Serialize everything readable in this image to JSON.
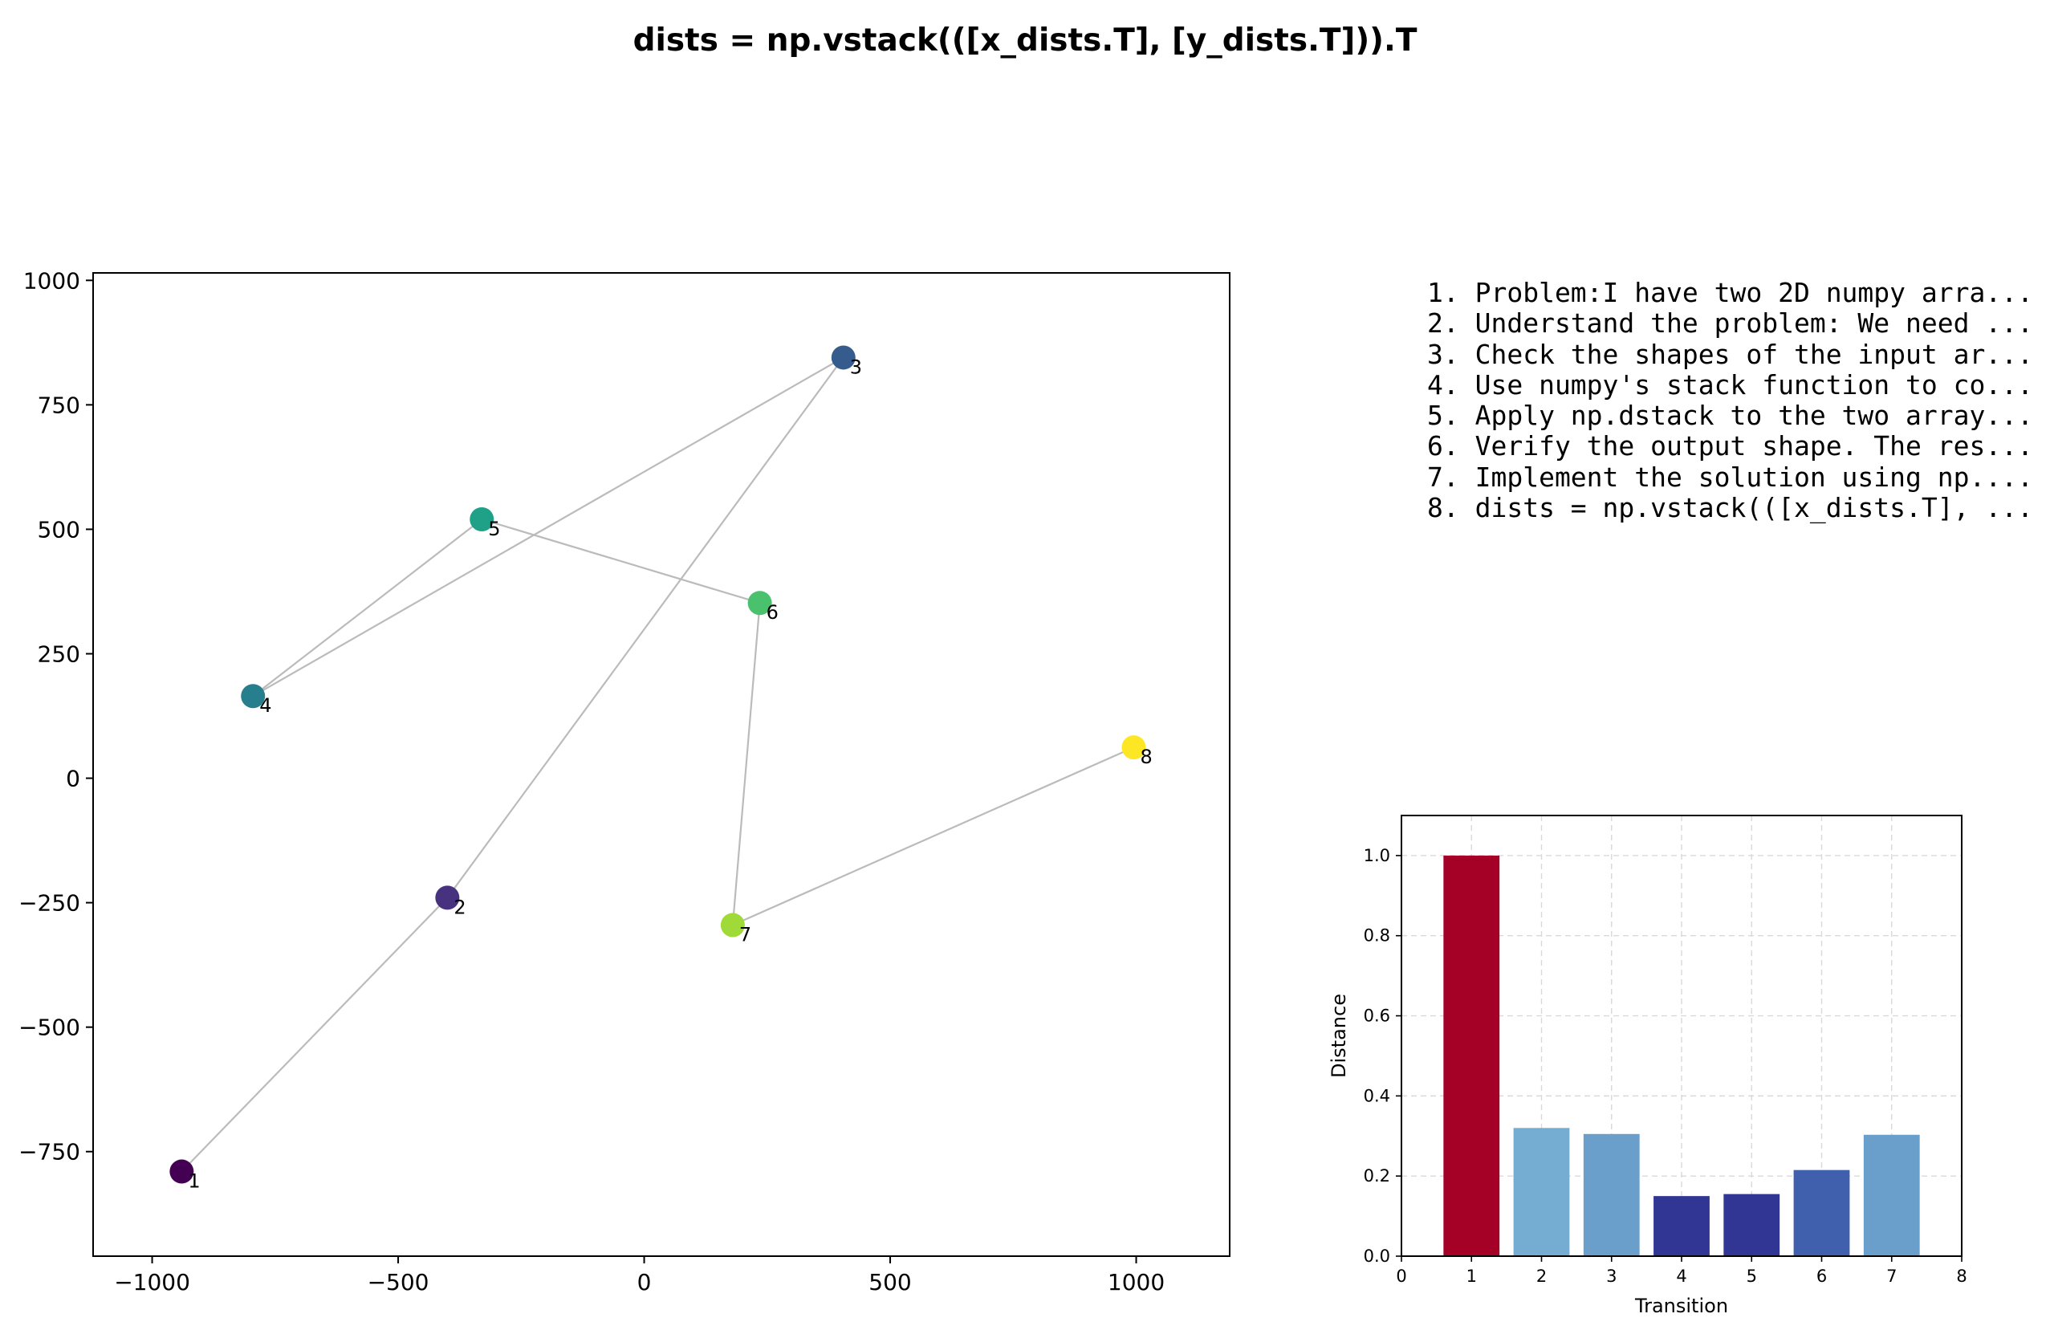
{
  "title": "dists = np.vstack(([x_dists.T], [y_dists.T])).T",
  "steps": [
    "1. Problem:I have two 2D numpy arra...",
    "2. Understand the problem: We need ...",
    "3. Check the shapes of the input ar...",
    "4. Use numpy's stack function to co...",
    "5. Apply np.dstack to the two array...",
    "6. Verify the output shape. The res...",
    "7. Implement the solution using np....",
    "8. dists = np.vstack(([x_dists.T], ..."
  ],
  "chart_data": [
    {
      "type": "scatter",
      "title": "",
      "xlabel": "",
      "ylabel": "",
      "xlim": [
        -1120,
        1190
      ],
      "ylim": [
        -960,
        1015
      ],
      "xticks": [
        -1000,
        -500,
        0,
        500,
        1000
      ],
      "yticks": [
        -750,
        -500,
        -250,
        0,
        250,
        500,
        750,
        1000
      ],
      "xtick_labels": [
        "−1000",
        "−500",
        "0",
        "500",
        "1000"
      ],
      "ytick_labels": [
        "−750",
        "−500",
        "−250",
        "0",
        "250",
        "500",
        "750",
        "1000"
      ],
      "connect_points": true,
      "line_color": "#bbbbbb",
      "grid": false,
      "points": [
        {
          "label": "1",
          "x": -940,
          "y": -790,
          "color": "#440154"
        },
        {
          "label": "2",
          "x": -400,
          "y": -240,
          "color": "#46327e"
        },
        {
          "label": "3",
          "x": 405,
          "y": 845,
          "color": "#365c8d"
        },
        {
          "label": "4",
          "x": -795,
          "y": 165,
          "color": "#277f8e"
        },
        {
          "label": "5",
          "x": -330,
          "y": 520,
          "color": "#1fa187"
        },
        {
          "label": "6",
          "x": 235,
          "y": 352,
          "color": "#4ac16d"
        },
        {
          "label": "7",
          "x": 180,
          "y": -295,
          "color": "#a0da39"
        },
        {
          "label": "8",
          "x": 995,
          "y": 62,
          "color": "#fde725"
        }
      ]
    },
    {
      "type": "bar",
      "title": "",
      "xlabel": "Transition",
      "ylabel": "Distance",
      "xlim": [
        0,
        8
      ],
      "ylim": [
        0,
        1.1
      ],
      "xticks": [
        0,
        1,
        2,
        3,
        4,
        5,
        6,
        7,
        8
      ],
      "yticks": [
        0.0,
        0.2,
        0.4,
        0.6,
        0.8,
        1.0
      ],
      "ytick_labels": [
        "0.0",
        "0.2",
        "0.4",
        "0.6",
        "0.8",
        "1.0"
      ],
      "grid": true,
      "categories": [
        "1",
        "2",
        "3",
        "4",
        "5",
        "6",
        "7"
      ],
      "values": [
        1.0,
        0.32,
        0.305,
        0.15,
        0.155,
        0.215,
        0.303
      ],
      "colors": [
        "#a50026",
        "#74add1",
        "#6a9fcc",
        "#313695",
        "#313695",
        "#4060ad",
        "#6a9fcc"
      ]
    }
  ]
}
